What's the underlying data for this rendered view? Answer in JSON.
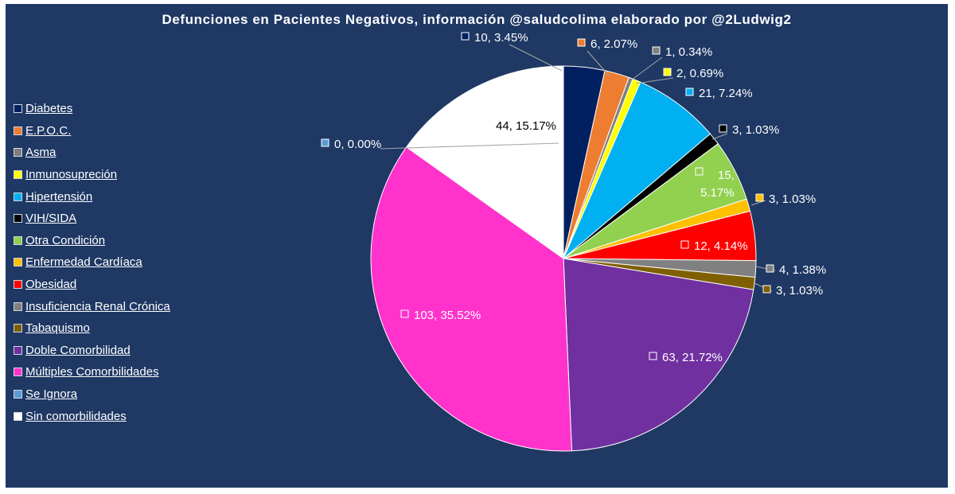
{
  "chart_data": {
    "type": "pie",
    "title": "Defunciones en Pacientes Negativos, información @saludcolima elaborado por @2Ludwig2",
    "legend_position": "left",
    "slices": [
      {
        "name": "Diabetes",
        "value": 10,
        "percent": "3.45%",
        "label": "10, 3.45%",
        "color": "#002060"
      },
      {
        "name": "E.P.O.C.",
        "value": 6,
        "percent": "2.07%",
        "label": "6, 2.07%",
        "color": "#ed7d31"
      },
      {
        "name": "Asma",
        "value": 1,
        "percent": "0.34%",
        "label": "1, 0.34%",
        "color": "#7f7f7f"
      },
      {
        "name": "Inmunosupreción",
        "value": 2,
        "percent": "0.69%",
        "label": "2, 0.69%",
        "color": "#ffff00"
      },
      {
        "name": "Hipertensión",
        "value": 21,
        "percent": "7.24%",
        "label": "21, 7.24%",
        "color": "#00b0f0"
      },
      {
        "name": "VIH/SIDA",
        "value": 3,
        "percent": "1.03%",
        "label": "3, 1.03%",
        "color": "#000000"
      },
      {
        "name": "Otra Condición",
        "value": 15,
        "percent": "5.17%",
        "label": "15, 5.17%",
        "color": "#92d050"
      },
      {
        "name": "Enfermedad Cardíaca",
        "value": 3,
        "percent": "1.03%",
        "label": "3, 1.03%",
        "color": "#ffc000"
      },
      {
        "name": "Obesidad",
        "value": 12,
        "percent": "4.14%",
        "label": "12, 4.14%",
        "color": "#ff0000"
      },
      {
        "name": "Insuficiencia Renal Crónica",
        "value": 4,
        "percent": "1.38%",
        "label": "4, 1.38%",
        "color": "#808080"
      },
      {
        "name": "Tabaquismo",
        "value": 3,
        "percent": "1.03%",
        "label": "3, 1.03%",
        "color": "#7f6000"
      },
      {
        "name": "Doble Comorbilidad",
        "value": 63,
        "percent": "21.72%",
        "label": "63, 21.72%",
        "color": "#7030a0"
      },
      {
        "name": "Múltiples Comorbilidades",
        "value": 103,
        "percent": "35.52%",
        "label": "103, 35.52%",
        "color": "#ff33cc"
      },
      {
        "name": "Se Ignora",
        "value": 0,
        "percent": "0.00%",
        "label": "0, 0.00%",
        "color": "#5b9bd5"
      },
      {
        "name": "Sin comorbilidades",
        "value": 44,
        "percent": "15.17%",
        "label": "44, 15.17%",
        "color": "#ffffff"
      }
    ]
  }
}
